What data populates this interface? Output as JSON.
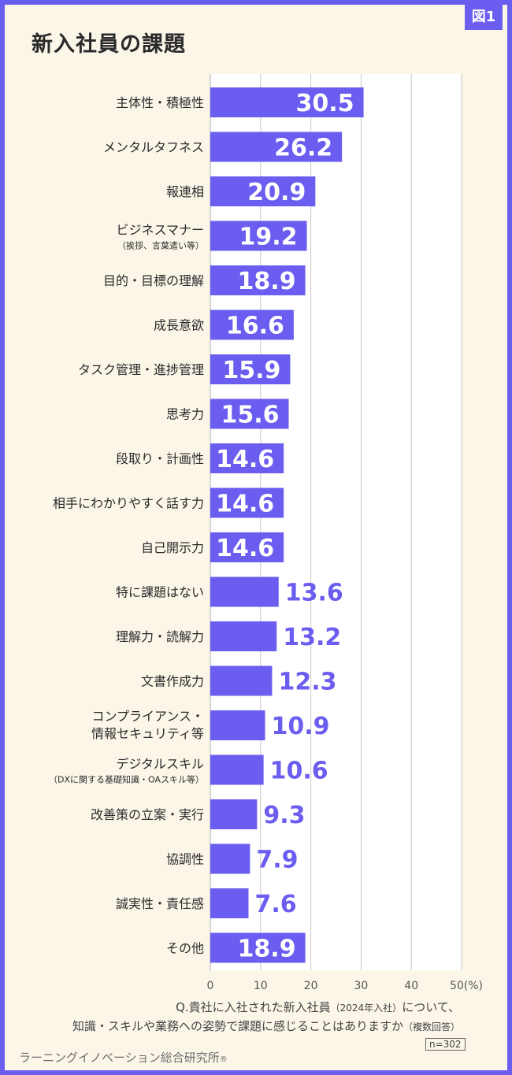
{
  "figure_tag": "図1",
  "title": "新入社員の課題",
  "chart_data": {
    "type": "bar",
    "orientation": "horizontal",
    "title": "新入社員の課題",
    "categories": [
      [
        "主体性・積極性"
      ],
      [
        "メンタルタフネス"
      ],
      [
        "報連相"
      ],
      [
        "ビジネスマナー",
        "（挨拶、言葉遣い等）"
      ],
      [
        "目的・目標の理解"
      ],
      [
        "成長意欲"
      ],
      [
        "タスク管理・進捗管理"
      ],
      [
        "思考力"
      ],
      [
        "段取り・計画性"
      ],
      [
        "相手にわかりやすく話す力"
      ],
      [
        "自己開示力"
      ],
      [
        "特に課題はない"
      ],
      [
        "理解力・読解力"
      ],
      [
        "文書作成力"
      ],
      [
        "コンプライアンス・",
        "情報セキュリティ等"
      ],
      [
        "デジタルスキル",
        "（DXに関する基礎知識・OAスキル等）"
      ],
      [
        "改善策の立案・実行"
      ],
      [
        "協調性"
      ],
      [
        "誠実性・責任感"
      ],
      [
        "その他"
      ]
    ],
    "values": [
      30.5,
      26.2,
      20.9,
      19.2,
      18.9,
      16.6,
      15.9,
      15.6,
      14.6,
      14.6,
      14.6,
      13.6,
      13.2,
      12.3,
      10.9,
      10.6,
      9.3,
      7.9,
      7.6,
      18.9
    ],
    "value_labels": [
      "30.5",
      "26.2",
      "20.9",
      "19.2",
      "18.9",
      "16.6",
      "15.9",
      "15.6",
      "14.6",
      "14.6",
      "14.6",
      "13.6",
      "13.2",
      "12.3",
      "10.9",
      "10.6",
      "9.3",
      "7.9",
      "7.6",
      "18.9"
    ],
    "xlim": [
      0,
      50
    ],
    "x_ticks": [
      "0",
      "10",
      "20",
      "30",
      "40",
      "50(%)"
    ],
    "x_tick_values": [
      0,
      10,
      20,
      30,
      40,
      50
    ],
    "grid": true,
    "bar_color": "#6a5df0",
    "label_inside_color": "#ffffff",
    "label_outside_color": "#6a5df0"
  },
  "note": {
    "line1_a": "Q.貴社に入社された新入社員",
    "line1_small": "（2024年入社）",
    "line1_b": "について、",
    "line2_a": "知識・スキルや業務への姿勢で課題に感じることはありますか",
    "line2_small": "（複数回答）"
  },
  "sample_size": "n=302",
  "source": "ラーニングイノベーション総合研究所",
  "source_mark": "®",
  "colors": {
    "accent": "#6a5df0",
    "background": "#fbf6e8",
    "chart_area": "#ffffff"
  }
}
